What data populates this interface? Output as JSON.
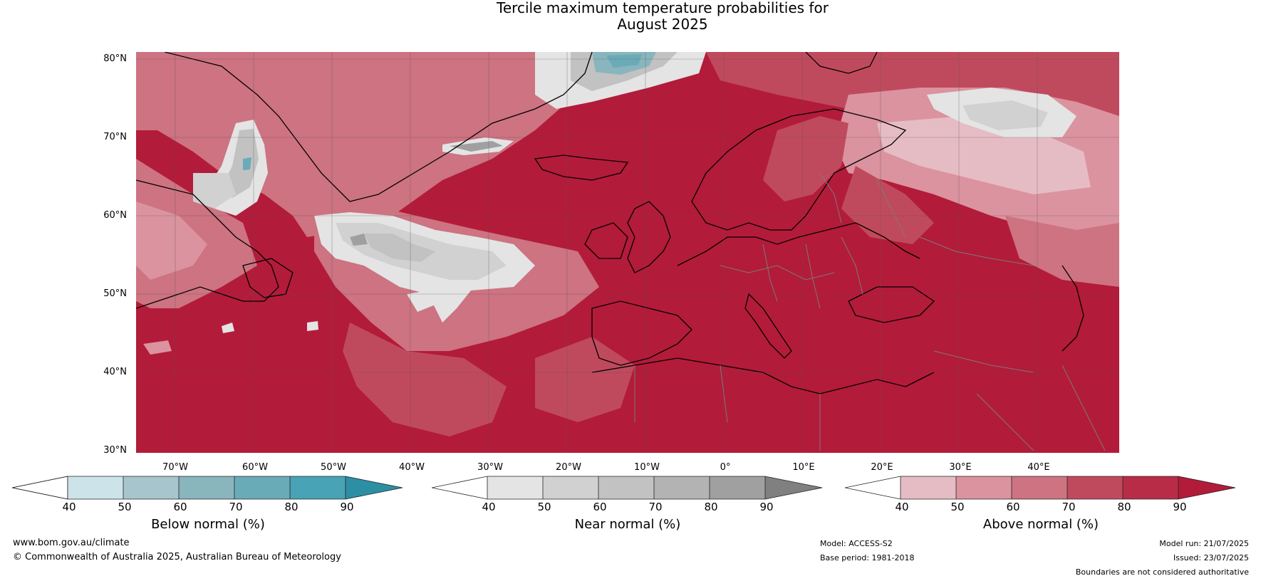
{
  "title": {
    "line1": "Tercile maximum temperature probabilities for",
    "line2": "August 2025"
  },
  "colors": {
    "ocean_high": "#b31b3a",
    "above": [
      "#e6bcc4",
      "#da939f",
      "#cd7381",
      "#c04a5d",
      "#b31b3a"
    ],
    "near": [
      "#e4e4e4",
      "#d1d1d1",
      "#c2c2c2",
      "#b3b3b3",
      "#a0a0a0",
      "#808080"
    ],
    "below": [
      "#cde3ea",
      "#a6c5cc",
      "#89b5bd",
      "#6aabb8",
      "#47a3b5",
      "#2d8fa3"
    ],
    "coastline": "#000000",
    "border": "#7a7a7a"
  },
  "map": {
    "lat_labels": [
      "80°N",
      "70°N",
      "60°N",
      "50°N",
      "40°N",
      "30°N"
    ],
    "lon_labels": [
      "70°W",
      "60°W",
      "50°W",
      "40°W",
      "30°W",
      "20°W",
      "10°W",
      "0°",
      "10°E",
      "20°E",
      "30°E",
      "40°E"
    ],
    "extent": {
      "lon_min": -75,
      "lon_max": 50,
      "lat_min": 30,
      "lat_max": 81
    }
  },
  "colorbars": [
    {
      "label": "Below normal (%)",
      "ticks": [
        "40",
        "50",
        "60",
        "70",
        "80",
        "90"
      ]
    },
    {
      "label": "Near normal (%)",
      "ticks": [
        "40",
        "50",
        "60",
        "70",
        "80",
        "90"
      ]
    },
    {
      "label": "Above normal (%)",
      "ticks": [
        "40",
        "50",
        "60",
        "70",
        "80",
        "90"
      ]
    }
  ],
  "footer": {
    "website": "www.bom.gov.au/climate",
    "copyright": "© Commonwealth of Australia 2025, Australian Bureau of Meteorology",
    "model": "Model: ACCESS-S2",
    "base_period": "Base period: 1981-2018",
    "model_run": "Model run: 21/07/2025",
    "issued": "Issued: 23/07/2025",
    "disclaimer": "Boundaries are not considered authoritative"
  }
}
